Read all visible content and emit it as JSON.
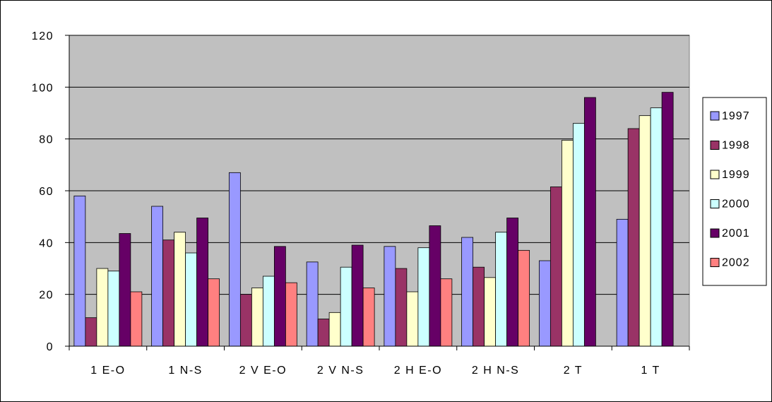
{
  "chart_data": {
    "type": "bar",
    "title": "",
    "xlabel": "",
    "ylabel": "",
    "ylim": [
      0,
      120
    ],
    "yticks": [
      0,
      20,
      40,
      60,
      80,
      100,
      120
    ],
    "grid": true,
    "legend_position": "right",
    "plot_background": "#c0c0c0",
    "categories": [
      "1 E-O",
      "1 N-S",
      "2 V E-O",
      "2 V N-S",
      "2 H E-O",
      "2 H N-S",
      "2 T",
      "1 T"
    ],
    "series": [
      {
        "name": "1997",
        "color": "#9999ff",
        "values": [
          58,
          54,
          67,
          32.5,
          38.5,
          42,
          33,
          49
        ]
      },
      {
        "name": "1998",
        "color": "#993366",
        "values": [
          11,
          41,
          20,
          10.5,
          30,
          30.5,
          61.5,
          84
        ]
      },
      {
        "name": "1999",
        "color": "#ffffcc",
        "values": [
          30,
          44,
          22.5,
          13,
          21,
          26.5,
          79.5,
          89
        ]
      },
      {
        "name": "2000",
        "color": "#ccffff",
        "values": [
          29,
          36,
          27,
          30.5,
          38,
          44,
          86,
          92
        ]
      },
      {
        "name": "2001",
        "color": "#660066",
        "values": [
          43.5,
          49.5,
          38.5,
          39,
          46.5,
          49.5,
          96,
          98
        ]
      },
      {
        "name": "2002",
        "color": "#ff8080",
        "values": [
          21,
          26,
          24.5,
          22.5,
          26,
          37,
          null,
          null
        ]
      }
    ]
  }
}
